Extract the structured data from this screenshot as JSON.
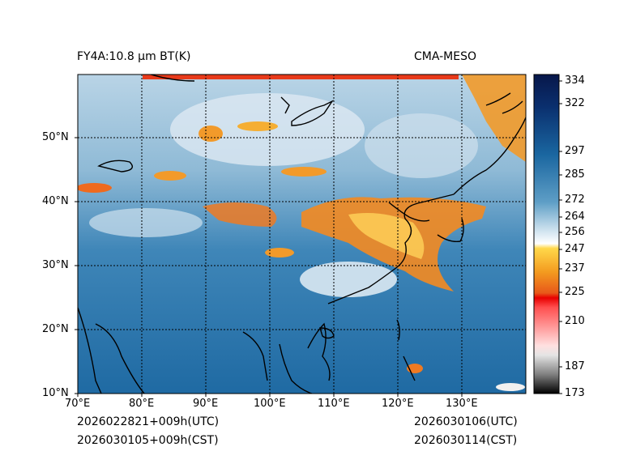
{
  "header": {
    "left_title": "FY4A:10.8 μm BT(K)",
    "right_title": "CMA-MESO"
  },
  "footer": {
    "left_utc": "2026022821+009h(UTC)",
    "left_cst": "2026030105+009h(CST)",
    "right_utc": "2026030106(UTC)",
    "right_cst": "2026030114(CST)"
  },
  "map": {
    "lon_labels": [
      "70°E",
      "80°E",
      "90°E",
      "100°E",
      "110°E",
      "120°E",
      "130°E"
    ],
    "lat_labels": [
      "50°N",
      "40°N",
      "30°N",
      "20°N",
      "10°N"
    ]
  },
  "colorbar": {
    "ticks": [
      "334",
      "322",
      "297",
      "285",
      "272",
      "264",
      "256",
      "247",
      "237",
      "225",
      "210",
      "187",
      "173"
    ]
  }
}
